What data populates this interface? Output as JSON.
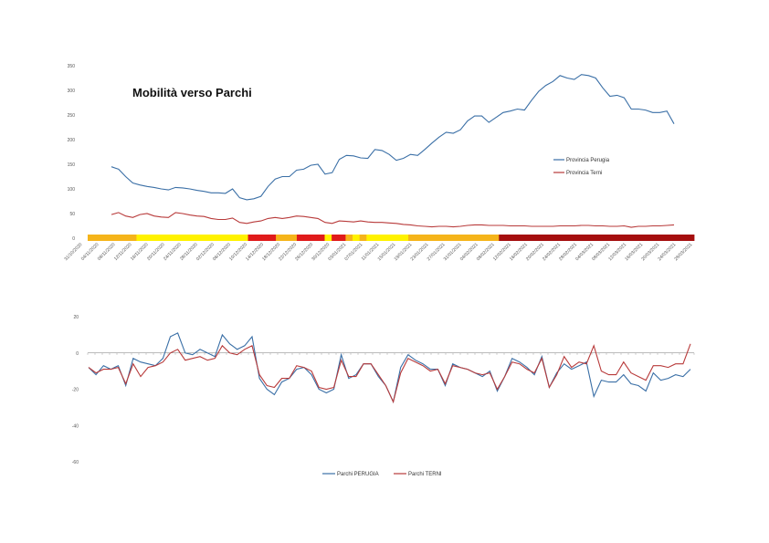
{
  "colors": {
    "perugia": "#3A6FA6",
    "terni": "#B83A3A",
    "zone_yellow": "#FFF200",
    "zone_orange": "#F5B41A",
    "zone_red": "#E01B1B",
    "zone_darkred": "#A50E0E"
  },
  "chart_data": [
    {
      "type": "line",
      "title": "Mobilità verso Parchi",
      "ylabels": [
        "0",
        "50",
        "100",
        "150",
        "200",
        "250",
        "300",
        "350"
      ],
      "ylim": [
        0,
        350
      ],
      "legend_position": "right",
      "xlabels": [
        "31/10/2020",
        "04/11/2020",
        "08/11/2020",
        "12/11/2020",
        "16/11/2020",
        "20/11/2020",
        "24/11/2020",
        "28/11/2020",
        "02/12/2020",
        "06/12/2020",
        "10/12/2020",
        "14/12/2020",
        "18/12/2020",
        "22/12/2020",
        "26/12/2020",
        "30/12/2020",
        "03/01/2021",
        "07/01/2021",
        "11/01/2021",
        "15/01/2021",
        "19/01/2021",
        "23/01/2021",
        "27/01/2021",
        "31/01/2021",
        "04/02/2021",
        "08/02/2021",
        "12/02/2021",
        "16/02/2021",
        "20/02/2021",
        "24/02/2021",
        "28/02/2021",
        "04/03/2021",
        "08/03/2021",
        "12/03/2021",
        "16/03/2021",
        "20/03/2021",
        "24/03/2021",
        "28/03/2021"
      ],
      "series": [
        {
          "name": "Provincia Perugia",
          "color": "#3A6FA6",
          "values": [
            145,
            140,
            125,
            112,
            108,
            105,
            103,
            100,
            98,
            103,
            102,
            100,
            97,
            95,
            92,
            92,
            91,
            100,
            82,
            78,
            80,
            85,
            105,
            120,
            125,
            125,
            138,
            140,
            148,
            150,
            130,
            133,
            160,
            168,
            167,
            163,
            162,
            180,
            178,
            170,
            158,
            162,
            170,
            168,
            180,
            193,
            205,
            215,
            213,
            220,
            238,
            248,
            248,
            235,
            245,
            255,
            258,
            262,
            260,
            280,
            298,
            310,
            318,
            330,
            325,
            322,
            332,
            330,
            325,
            305,
            288,
            290,
            285,
            262,
            262,
            260,
            255,
            255,
            258,
            232
          ]
        },
        {
          "name": "Provincia Terni",
          "color": "#B83A3A",
          "values": [
            48,
            52,
            45,
            42,
            48,
            50,
            45,
            43,
            42,
            52,
            50,
            47,
            45,
            44,
            40,
            38,
            38,
            41,
            32,
            30,
            33,
            35,
            40,
            42,
            40,
            42,
            45,
            44,
            42,
            40,
            32,
            30,
            35,
            34,
            33,
            35,
            33,
            32,
            32,
            31,
            30,
            28,
            27,
            25,
            24,
            23,
            24,
            24,
            23,
            24,
            26,
            27,
            27,
            26,
            26,
            26,
            25,
            25,
            25,
            24,
            24,
            24,
            24,
            25,
            25,
            25,
            26,
            26,
            25,
            25,
            24,
            24,
            25,
            22,
            24,
            24,
            25,
            25,
            26,
            27
          ]
        }
      ],
      "zones": [
        "orange",
        "orange",
        "orange",
        "orange",
        "orange",
        "orange",
        "orange",
        "yellow",
        "yellow",
        "yellow",
        "yellow",
        "yellow",
        "yellow",
        "yellow",
        "yellow",
        "yellow",
        "yellow",
        "yellow",
        "yellow",
        "yellow",
        "yellow",
        "yellow",
        "yellow",
        "red",
        "red",
        "red",
        "red",
        "orange",
        "orange",
        "orange",
        "red",
        "red",
        "red",
        "red",
        "yellow",
        "red",
        "red",
        "orange",
        "yellow",
        "orange",
        "yellow",
        "yellow",
        "yellow",
        "yellow",
        "yellow",
        "yellow",
        "orange",
        "orange",
        "orange",
        "orange",
        "orange",
        "orange",
        "orange",
        "orange",
        "orange",
        "orange",
        "orange",
        "orange",
        "orange",
        "darkred",
        "darkred",
        "darkred",
        "darkred",
        "darkred",
        "darkred",
        "darkred",
        "darkred",
        "darkred",
        "darkred",
        "darkred",
        "darkred",
        "darkred",
        "darkred",
        "darkred",
        "darkred",
        "darkred",
        "darkred",
        "darkred",
        "darkred",
        "darkred",
        "darkred",
        "darkred",
        "darkred",
        "darkred",
        "darkred",
        "darkred",
        "darkred"
      ]
    },
    {
      "type": "line",
      "ylabels": [
        "-60",
        "-40",
        "-20",
        "0",
        "20"
      ],
      "ylim": [
        -60,
        20
      ],
      "legend_position": "bottom",
      "series": [
        {
          "name": "Parchi PERUGIA",
          "color": "#3A6FA6",
          "values": [
            -8,
            -12,
            -7,
            -9,
            -7,
            -18,
            -3,
            -5,
            -6,
            -7,
            -3,
            9,
            11,
            0,
            -1,
            2,
            0,
            -2,
            10,
            5,
            2,
            4,
            9,
            -14,
            -20,
            -23,
            -16,
            -14,
            -9,
            -8,
            -12,
            -20,
            -22,
            -20,
            -1,
            -14,
            -12,
            -6,
            -6,
            -13,
            -18,
            -27,
            -8,
            -1,
            -4,
            -6,
            -9,
            -9,
            -18,
            -6,
            -8,
            -9,
            -11,
            -13,
            -10,
            -21,
            -13,
            -3,
            -5,
            -8,
            -12,
            -2,
            -19,
            -11,
            -6,
            -9,
            -7,
            -5,
            -24,
            -15,
            -16,
            -16,
            -12,
            -17,
            -18,
            -21,
            -11,
            -15,
            -14,
            -12,
            -13,
            -9
          ]
        },
        {
          "name": "Parchi TERNI",
          "color": "#B83A3A",
          "values": [
            -8,
            -11,
            -9,
            -9,
            -8,
            -17,
            -6,
            -13,
            -8,
            -7,
            -5,
            0,
            2,
            -4,
            -3,
            -2,
            -4,
            -3,
            4,
            0,
            -1,
            2,
            4,
            -12,
            -18,
            -19,
            -14,
            -14,
            -7,
            -8,
            -10,
            -19,
            -20,
            -19,
            -4,
            -13,
            -13,
            -6,
            -6,
            -12,
            -18,
            -27,
            -11,
            -3,
            -5,
            -7,
            -10,
            -9,
            -17,
            -7,
            -8,
            -9,
            -11,
            -12,
            -11,
            -20,
            -13,
            -5,
            -6,
            -9,
            -11,
            -3,
            -19,
            -12,
            -2,
            -8,
            -5,
            -6,
            4,
            -10,
            -12,
            -12,
            -5,
            -11,
            -13,
            -15,
            -7,
            -7,
            -8,
            -6,
            -6,
            5
          ]
        }
      ]
    }
  ]
}
